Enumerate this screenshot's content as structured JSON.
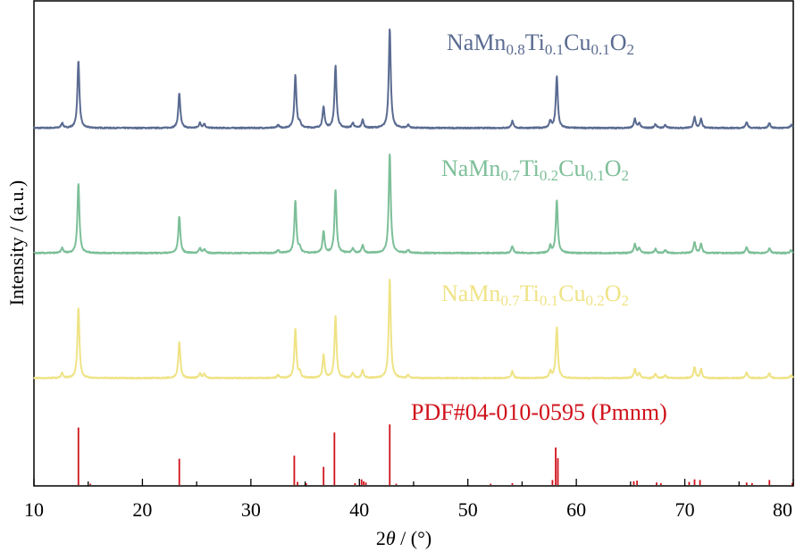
{
  "chart_data": {
    "type": "line",
    "xlabel_prefix": "2",
    "xlabel_var": "θ",
    "xlabel_suffix": " / (°)",
    "ylabel": "Intensity / (a.u.)",
    "xlim": [
      10,
      80
    ],
    "xticks": [
      10,
      20,
      30,
      40,
      50,
      60,
      70,
      80
    ],
    "grid": false,
    "series": [
      {
        "name_parts": [
          "NaMn",
          "0.8",
          "Ti",
          "0.1",
          "Cu",
          "0.1",
          "O",
          "2"
        ],
        "color": "#5a6b91",
        "peaks": [
          [
            12.6,
            0.05
          ],
          [
            14.1,
            0.68
          ],
          [
            23.4,
            0.35
          ],
          [
            25.3,
            0.05
          ],
          [
            25.7,
            0.04
          ],
          [
            32.5,
            0.03
          ],
          [
            34.1,
            0.53
          ],
          [
            34.5,
            0.05
          ],
          [
            36.7,
            0.21
          ],
          [
            37.8,
            0.63
          ],
          [
            39.4,
            0.05
          ],
          [
            40.3,
            0.08
          ],
          [
            42.8,
            1.0
          ],
          [
            44.5,
            0.03
          ],
          [
            54.1,
            0.07
          ],
          [
            57.6,
            0.07
          ],
          [
            58.2,
            0.52
          ],
          [
            65.4,
            0.09
          ],
          [
            65.8,
            0.05
          ],
          [
            67.3,
            0.04
          ],
          [
            68.2,
            0.03
          ],
          [
            70.9,
            0.11
          ],
          [
            71.5,
            0.09
          ],
          [
            75.7,
            0.06
          ],
          [
            77.8,
            0.05
          ],
          [
            79.8,
            0.03
          ]
        ]
      },
      {
        "name_parts": [
          "NaMn",
          "0.7",
          "Ti",
          "0.2",
          "Cu",
          "0.1",
          "O",
          "2"
        ],
        "color": "#7cbf98",
        "peaks": [
          [
            12.6,
            0.05
          ],
          [
            14.1,
            0.7
          ],
          [
            23.4,
            0.37
          ],
          [
            25.3,
            0.05
          ],
          [
            25.7,
            0.04
          ],
          [
            32.5,
            0.03
          ],
          [
            34.1,
            0.53
          ],
          [
            34.5,
            0.05
          ],
          [
            36.7,
            0.22
          ],
          [
            37.8,
            0.64
          ],
          [
            39.4,
            0.05
          ],
          [
            40.3,
            0.08
          ],
          [
            42.8,
            1.0
          ],
          [
            44.5,
            0.03
          ],
          [
            54.1,
            0.07
          ],
          [
            57.6,
            0.07
          ],
          [
            58.2,
            0.53
          ],
          [
            65.4,
            0.09
          ],
          [
            65.8,
            0.05
          ],
          [
            67.3,
            0.04
          ],
          [
            68.2,
            0.03
          ],
          [
            70.9,
            0.11
          ],
          [
            71.5,
            0.09
          ],
          [
            75.7,
            0.06
          ],
          [
            77.8,
            0.05
          ],
          [
            79.8,
            0.03
          ]
        ]
      },
      {
        "name_parts": [
          "NaMn",
          "0.7",
          "Ti",
          "0.1",
          "Cu",
          "0.2",
          "O",
          "2"
        ],
        "color": "#efe386",
        "peaks": [
          [
            12.6,
            0.05
          ],
          [
            14.1,
            0.71
          ],
          [
            23.4,
            0.37
          ],
          [
            25.3,
            0.05
          ],
          [
            25.7,
            0.04
          ],
          [
            32.5,
            0.03
          ],
          [
            34.1,
            0.5
          ],
          [
            34.5,
            0.05
          ],
          [
            36.7,
            0.23
          ],
          [
            37.8,
            0.63
          ],
          [
            39.4,
            0.05
          ],
          [
            40.3,
            0.08
          ],
          [
            42.8,
            1.0
          ],
          [
            44.5,
            0.03
          ],
          [
            54.1,
            0.07
          ],
          [
            57.6,
            0.07
          ],
          [
            58.2,
            0.52
          ],
          [
            65.4,
            0.09
          ],
          [
            65.8,
            0.05
          ],
          [
            67.3,
            0.04
          ],
          [
            68.2,
            0.03
          ],
          [
            70.9,
            0.11
          ],
          [
            71.5,
            0.09
          ],
          [
            75.7,
            0.06
          ],
          [
            77.8,
            0.05
          ],
          [
            79.8,
            0.03
          ]
        ]
      }
    ],
    "reference": {
      "label": "PDF#04-010-0595 (Pmnm)",
      "color": "#d0121b",
      "lines": [
        [
          14.1,
          0.92
        ],
        [
          15.2,
          0.02
        ],
        [
          23.4,
          0.42
        ],
        [
          34.0,
          0.47
        ],
        [
          34.3,
          0.05
        ],
        [
          35.1,
          0.03
        ],
        [
          36.7,
          0.29
        ],
        [
          37.7,
          0.84
        ],
        [
          39.6,
          0.03
        ],
        [
          40.2,
          0.09
        ],
        [
          40.4,
          0.06
        ],
        [
          40.6,
          0.04
        ],
        [
          42.8,
          0.97
        ],
        [
          43.4,
          0.02
        ],
        [
          52.1,
          0.02
        ],
        [
          54.1,
          0.03
        ],
        [
          57.8,
          0.08
        ],
        [
          58.1,
          0.6
        ],
        [
          58.3,
          0.43
        ],
        [
          65.3,
          0.06
        ],
        [
          65.6,
          0.07
        ],
        [
          67.4,
          0.04
        ],
        [
          67.8,
          0.03
        ],
        [
          70.4,
          0.05
        ],
        [
          70.9,
          0.09
        ],
        [
          71.4,
          0.08
        ],
        [
          75.7,
          0.04
        ],
        [
          76.2,
          0.03
        ],
        [
          77.8,
          0.08
        ],
        [
          79.9,
          0.03
        ]
      ]
    }
  }
}
